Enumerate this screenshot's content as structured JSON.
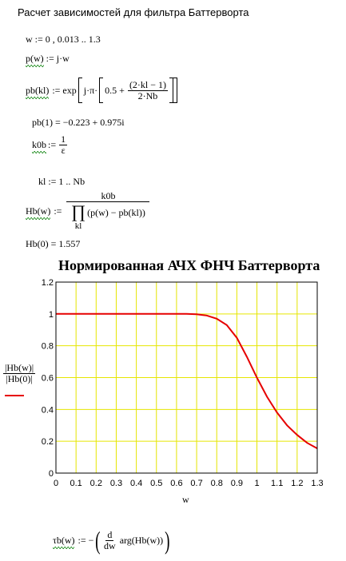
{
  "worksheet": {
    "heading": "Расчет зависимостей для фильтра Баттерворта",
    "w_def": "w := 0 , 0.013 .. 1.3",
    "p_lhs": "p(w)",
    "p_rhs": ":= j·w",
    "pb_lhs": "pb(kl)",
    "pb_rhs_head": ":= exp",
    "pb_rhs_mid": "j·π·",
    "pb_const": "0.5 +",
    "pb_num": "(2·kl − 1)",
    "pb_den": "2·Nb",
    "pb_result": "pb(1) = −0.223 + 0.975i",
    "k0b_lhs": "k0b",
    "k0b_assign": ":=",
    "k0b_num": "1",
    "k0b_den": "ε",
    "kl_range": "kl := 1 .. Nb",
    "hb_lhs": "Hb(w)",
    "hb_assign": ":=",
    "hb_num": "k0b",
    "hb_prod": "∏",
    "hb_prod_idx": "kl",
    "hb_den": "(p(w) − pb(kl))",
    "hb_result": "Hb(0) = 1.557",
    "tau_lhs": "τb(w)",
    "tau_rhs_head": ":= −",
    "tau_d_num": "d",
    "tau_d_den": "dw",
    "tau_arg": "arg(Hb(w))"
  },
  "chart_data": {
    "type": "line",
    "title": "Нормированная АЧХ ФНЧ Баттерворта",
    "xlabel": "w",
    "ylabel_num": "|Hb(w)|",
    "ylabel_den": "|Hb(0)|",
    "xlim": [
      0,
      1.3
    ],
    "ylim": [
      0,
      1.2
    ],
    "grid": true,
    "grid_color": "#e6e600",
    "line_color": "#e60000",
    "x_ticks": [
      "0",
      "0.1",
      "0.2",
      "0.3",
      "0.4",
      "0.5",
      "0.6",
      "0.7",
      "0.8",
      "0.9",
      "1",
      "1.1",
      "1.2",
      "1.3"
    ],
    "y_ticks": [
      "0",
      "0.2",
      "0.4",
      "0.6",
      "0.8",
      "1",
      "1.2"
    ],
    "series": [
      {
        "x": [
          0,
          0.1,
          0.2,
          0.3,
          0.4,
          0.5,
          0.6,
          0.65,
          0.7,
          0.75,
          0.8,
          0.85,
          0.9,
          0.95,
          1.0,
          1.05,
          1.1,
          1.15,
          1.2,
          1.25,
          1.3
        ],
        "values": [
          1,
          1,
          1,
          1,
          1,
          1,
          1,
          1,
          0.998,
          0.99,
          0.97,
          0.93,
          0.85,
          0.73,
          0.6,
          0.48,
          0.38,
          0.3,
          0.24,
          0.19,
          0.155
        ]
      }
    ]
  }
}
